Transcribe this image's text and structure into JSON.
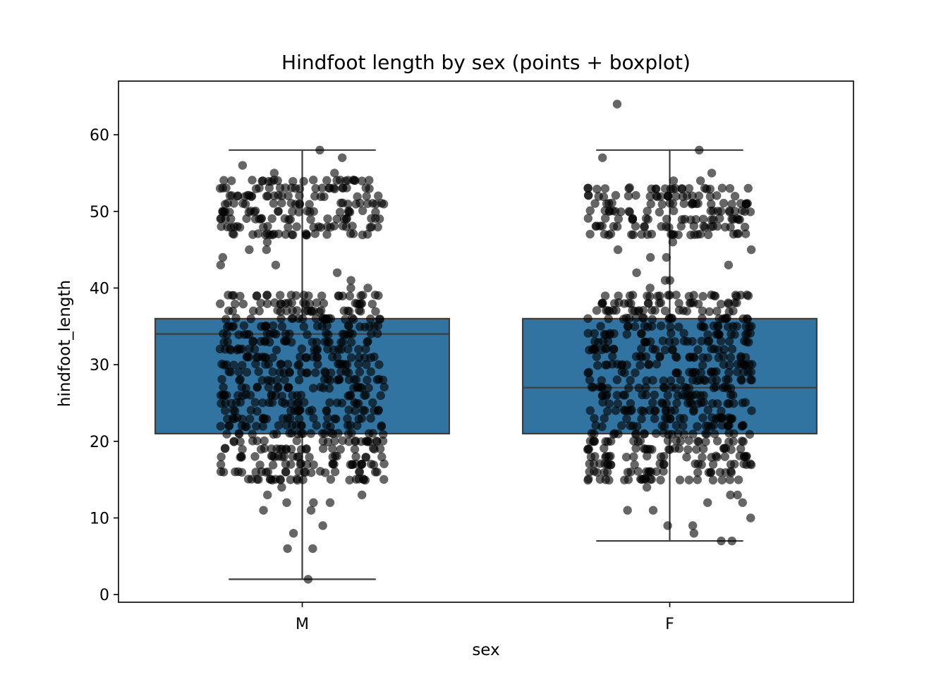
{
  "chart_data": {
    "type": "box",
    "title": "Hindfoot length by sex (points + boxplot)",
    "xlabel": "sex",
    "ylabel": "hindfoot_length",
    "categories": [
      "M",
      "F"
    ],
    "ylim": [
      -1,
      67
    ],
    "yticks": [
      0,
      10,
      20,
      30,
      40,
      50,
      60
    ],
    "grid": false,
    "box_color": "#3274a1",
    "edge_color": "#3d3d3d",
    "point_color": "#000000",
    "boxes": [
      {
        "category": "M",
        "whisker_low": 2,
        "q1": 21,
        "median": 34,
        "q3": 36,
        "whisker_high": 58
      },
      {
        "category": "F",
        "whisker_low": 7,
        "q1": 21,
        "median": 27,
        "q3": 36,
        "whisker_high": 58
      }
    ],
    "points": [
      {
        "category": "M",
        "clusters": [
          [
            15,
            39
          ],
          [
            47,
            54
          ]
        ],
        "outliers": [
          2,
          6,
          6,
          8,
          9,
          11,
          11,
          12,
          12,
          12,
          13,
          13,
          14,
          40,
          40,
          41,
          42,
          43,
          43,
          44,
          45,
          45,
          46,
          55,
          55,
          56,
          57,
          58
        ]
      },
      {
        "category": "F",
        "clusters": [
          [
            15,
            39
          ],
          [
            47,
            53
          ]
        ],
        "outliers": [
          7,
          7,
          8,
          9,
          9,
          10,
          11,
          11,
          12,
          12,
          13,
          13,
          14,
          40,
          41,
          41,
          42,
          43,
          44,
          44,
          45,
          45,
          46,
          54,
          54,
          55,
          57,
          58,
          64
        ]
      }
    ]
  }
}
